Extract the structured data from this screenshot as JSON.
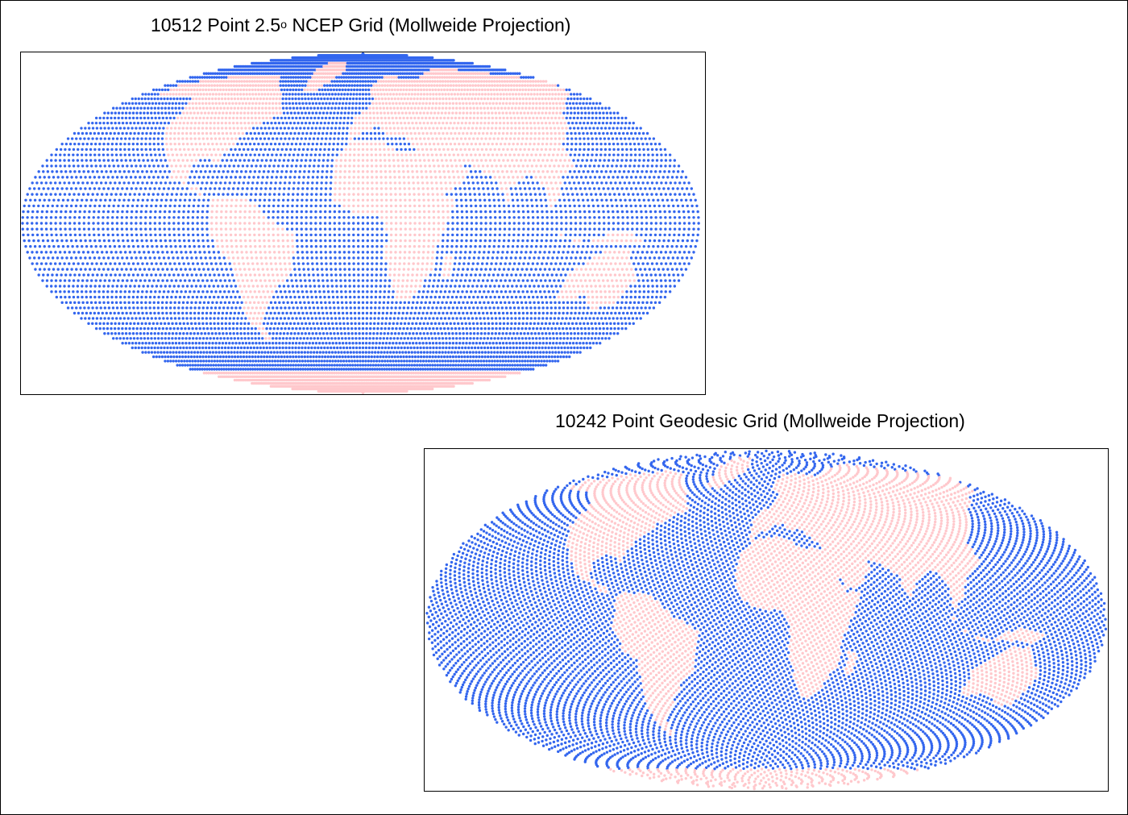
{
  "panels": [
    {
      "id": "ncep",
      "title_prefix": "10512 Point 2.5",
      "title_sup": "o",
      "title_suffix": " NCEP Grid (Mollweide Projection)",
      "grid_type": "lat-lon",
      "point_count": 10512
    },
    {
      "id": "geodesic",
      "title": "10242 Point Geodesic Grid (Mollweide Projection)",
      "grid_type": "geodesic",
      "point_count": 10242
    }
  ],
  "colors": {
    "ocean_point": "#3366ee",
    "land_point": "#ffc8cc",
    "frame": "#000000",
    "background": "#ffffff"
  }
}
